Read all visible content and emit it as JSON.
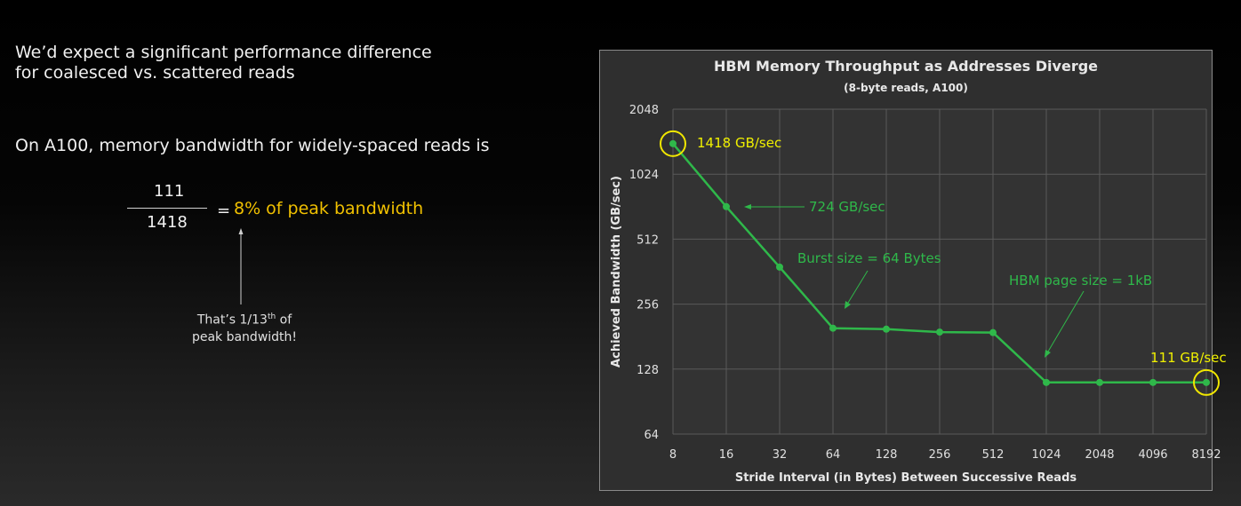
{
  "left_text": {
    "intro_line1": "We’d expect a significant performance difference",
    "intro_line2": "for coalesced vs. scattered reads",
    "statement": "On A100, memory bandwidth for widely-spaced reads is",
    "fraction_numerator": "111",
    "fraction_denominator": "1418",
    "equals": "=",
    "percent_text": "8% of peak bandwidth",
    "note_part1": "That’s 1/13",
    "note_sup": "th",
    "note_part2": " of",
    "note_line2": "peak bandwidth!"
  },
  "colors": {
    "line": "#2fb84a",
    "highlight": "#f0e600",
    "highlight_text": "#f0f000",
    "annotation": "#2fb84a",
    "percent": "#f0c000",
    "plot_bg": "#333333",
    "frame_bg": "#2f2f2f"
  },
  "chart_data": {
    "type": "line",
    "title": "HBM Memory Throughput as Addresses Diverge",
    "subtitle": "(8-byte reads, A100)",
    "xlabel": "Stride Interval (in Bytes) Between Successive Reads",
    "ylabel": "Achieved Bandwidth (GB/sec)",
    "x_scale": "log2 categorical",
    "y_scale": "log2",
    "ylim": [
      64,
      2048
    ],
    "yticks": [
      "64",
      "128",
      "256",
      "512",
      "1024",
      "2048"
    ],
    "categories": [
      "8",
      "16",
      "32",
      "64",
      "128",
      "256",
      "512",
      "1024",
      "2048",
      "4096",
      "8192"
    ],
    "series": [
      {
        "values": [
          1418,
          724,
          380,
          198,
          196,
          190,
          189,
          111,
          111,
          111,
          111
        ]
      }
    ],
    "grid": true,
    "legend": "none",
    "annotations": {
      "peak_label": "1418 GB/sec",
      "second_label": "724 GB/sec",
      "burst_label": "Burst size = 64 Bytes",
      "page_label": "HBM page size = 1kB",
      "min_label": "111 GB/sec"
    }
  }
}
